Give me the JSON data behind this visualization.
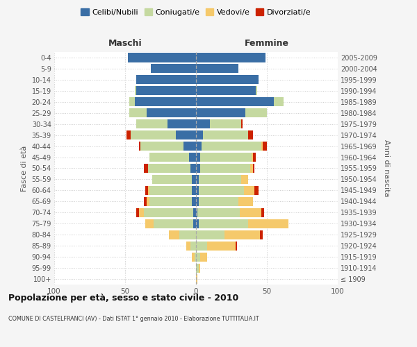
{
  "age_groups": [
    "100+",
    "95-99",
    "90-94",
    "85-89",
    "80-84",
    "75-79",
    "70-74",
    "65-69",
    "60-64",
    "55-59",
    "50-54",
    "45-49",
    "40-44",
    "35-39",
    "30-34",
    "25-29",
    "20-24",
    "15-19",
    "10-14",
    "5-9",
    "0-4"
  ],
  "birth_years": [
    "≤ 1909",
    "1910-1914",
    "1915-1919",
    "1920-1924",
    "1925-1929",
    "1930-1934",
    "1935-1939",
    "1940-1944",
    "1945-1949",
    "1950-1954",
    "1955-1959",
    "1960-1964",
    "1965-1969",
    "1970-1974",
    "1975-1979",
    "1980-1984",
    "1985-1989",
    "1990-1994",
    "1995-1999",
    "2000-2004",
    "2005-2009"
  ],
  "male_celibi": [
    0,
    0,
    0,
    0,
    0,
    2,
    2,
    3,
    3,
    3,
    4,
    5,
    9,
    14,
    20,
    35,
    43,
    42,
    42,
    32,
    48
  ],
  "male_coniugati": [
    0,
    0,
    1,
    4,
    12,
    28,
    35,
    30,
    30,
    28,
    30,
    28,
    30,
    32,
    22,
    12,
    4,
    1,
    0,
    0,
    0
  ],
  "male_vedovi": [
    0,
    0,
    2,
    3,
    7,
    6,
    3,
    2,
    1,
    0,
    0,
    0,
    0,
    0,
    0,
    0,
    0,
    0,
    0,
    0,
    0
  ],
  "male_divorziati": [
    0,
    0,
    0,
    0,
    0,
    0,
    2,
    2,
    2,
    0,
    3,
    0,
    1,
    3,
    0,
    0,
    0,
    0,
    0,
    0,
    0
  ],
  "female_celibi": [
    0,
    0,
    0,
    0,
    0,
    2,
    1,
    2,
    2,
    2,
    3,
    3,
    4,
    5,
    10,
    35,
    55,
    42,
    44,
    30,
    49
  ],
  "female_coniugati": [
    0,
    2,
    3,
    8,
    20,
    35,
    30,
    28,
    32,
    30,
    35,
    36,
    42,
    32,
    22,
    15,
    7,
    1,
    0,
    0,
    0
  ],
  "female_vedovi": [
    1,
    1,
    5,
    20,
    25,
    28,
    15,
    10,
    7,
    5,
    2,
    1,
    1,
    0,
    0,
    0,
    0,
    0,
    0,
    0,
    0
  ],
  "female_divorziati": [
    0,
    0,
    0,
    1,
    2,
    0,
    2,
    0,
    3,
    0,
    1,
    2,
    3,
    3,
    1,
    0,
    0,
    0,
    0,
    0,
    0
  ],
  "color_celibi": "#3a6ea5",
  "color_coniugati": "#c5d9a0",
  "color_vedovi": "#f5c96b",
  "color_divorziati": "#cc2200",
  "title": "Popolazione per età, sesso e stato civile - 2010",
  "subtitle": "COMUNE DI CASTELFRANCI (AV) - Dati ISTAT 1° gennaio 2010 - Elaborazione TUTTITALIA.IT",
  "xlabel_left": "Maschi",
  "xlabel_right": "Femmine",
  "ylabel_left": "Fasce di età",
  "ylabel_right": "Anni di nascita",
  "xlim": 100,
  "legend_labels": [
    "Celibi/Nubili",
    "Coniugati/e",
    "Vedovi/e",
    "Divorziati/e"
  ],
  "background_color": "#f5f5f5",
  "bar_background": "#ffffff"
}
